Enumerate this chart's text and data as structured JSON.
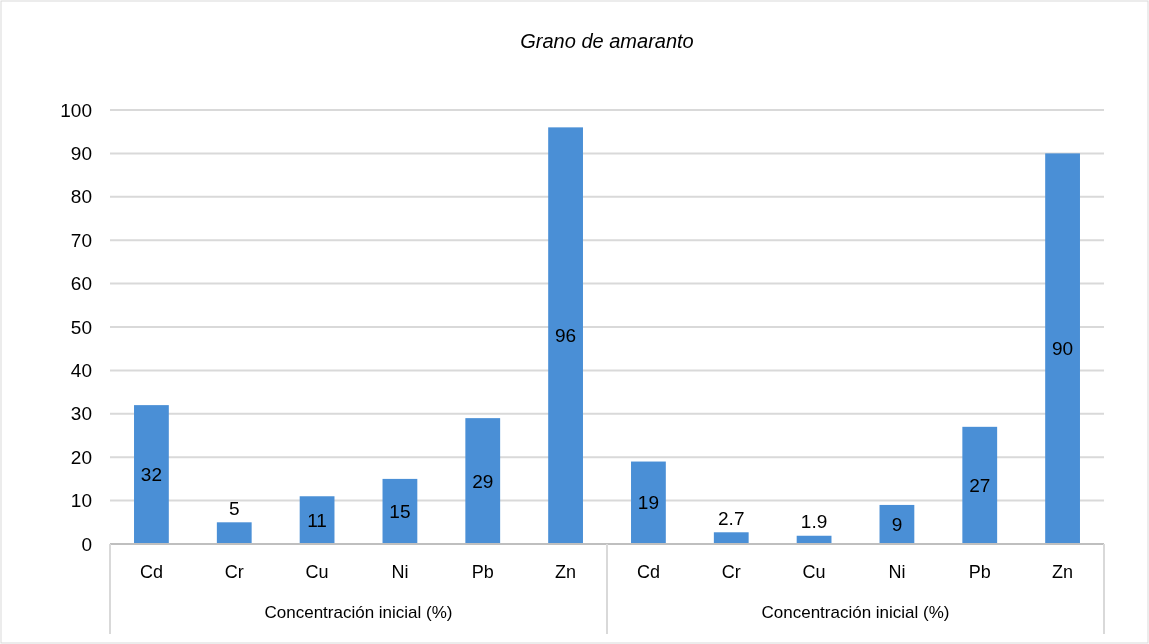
{
  "chart_data": {
    "type": "bar",
    "title": "Grano de amaranto",
    "categories": [
      "Cd",
      "Cr",
      "Cu",
      "Ni",
      "Pb",
      "Zn",
      "Cd",
      "Cr",
      "Cu",
      "Ni",
      "Pb",
      "Zn"
    ],
    "values": [
      32,
      5,
      11,
      15,
      29,
      96,
      19,
      2.7,
      1.9,
      9,
      27,
      90
    ],
    "color": "#4a8fd6",
    "ylim": [
      0,
      100
    ],
    "yticks": [
      0,
      10,
      20,
      30,
      40,
      50,
      60,
      70,
      80,
      90,
      100
    ],
    "grid": "y",
    "data_labels": true,
    "annotations": [
      "Concentración inicial (%)",
      "Concentración inicial (%)"
    ]
  }
}
